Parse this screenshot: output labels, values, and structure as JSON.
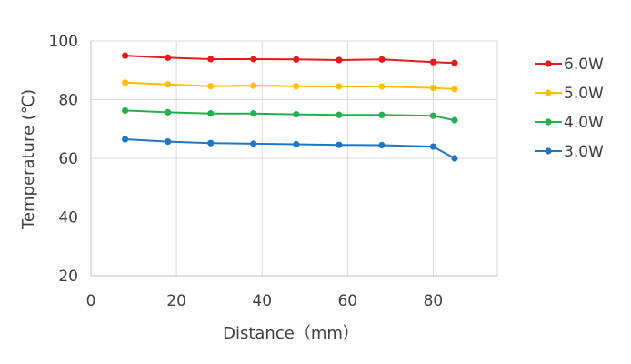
{
  "chart_data": {
    "type": "line",
    "xlabel": "Distance（mm）",
    "ylabel": "Temperature (℃)",
    "xlim": [
      0,
      95
    ],
    "ylim": [
      20,
      100
    ],
    "x_ticks": [
      "0",
      "20",
      "40",
      "60",
      "80"
    ],
    "y_ticks": [
      "20",
      "40",
      "60",
      "80",
      "100"
    ],
    "grid": true,
    "legend_position": "right",
    "x": [
      8,
      18,
      28,
      38,
      48,
      58,
      68,
      80,
      85
    ],
    "series": [
      {
        "name": "6.0W",
        "color": "#e41a1c",
        "values": [
          95.0,
          94.3,
          93.8,
          93.8,
          93.7,
          93.5,
          93.7,
          92.8,
          92.5
        ]
      },
      {
        "name": "5.0W",
        "color": "#ffc000",
        "values": [
          85.8,
          85.2,
          84.6,
          84.8,
          84.6,
          84.5,
          84.5,
          84.0,
          83.6
        ]
      },
      {
        "name": "4.0W",
        "color": "#22b14c",
        "values": [
          76.3,
          75.7,
          75.3,
          75.3,
          75.0,
          74.8,
          74.8,
          74.5,
          73.0
        ]
      },
      {
        "name": "3.0W",
        "color": "#1f77c4",
        "values": [
          66.5,
          65.7,
          65.2,
          65.0,
          64.8,
          64.6,
          64.5,
          64.0,
          60.0
        ]
      }
    ]
  }
}
